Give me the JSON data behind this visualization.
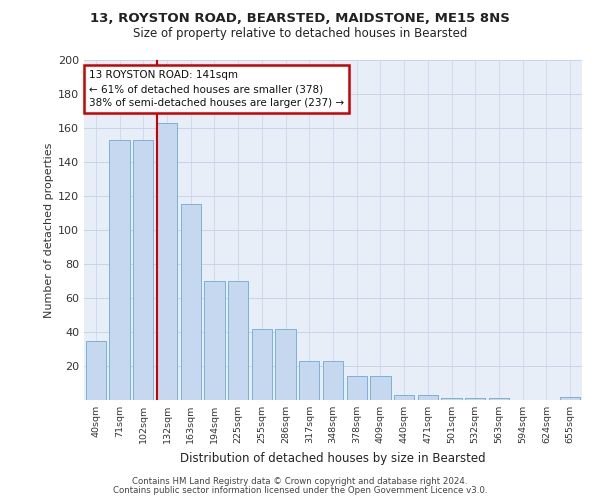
{
  "title": "13, ROYSTON ROAD, BEARSTED, MAIDSTONE, ME15 8NS",
  "subtitle": "Size of property relative to detached houses in Bearsted",
  "xlabel": "Distribution of detached houses by size in Bearsted",
  "ylabel": "Number of detached properties",
  "bar_labels": [
    "40sqm",
    "71sqm",
    "102sqm",
    "132sqm",
    "163sqm",
    "194sqm",
    "225sqm",
    "255sqm",
    "286sqm",
    "317sqm",
    "348sqm",
    "378sqm",
    "409sqm",
    "440sqm",
    "471sqm",
    "501sqm",
    "532sqm",
    "563sqm",
    "594sqm",
    "624sqm",
    "655sqm"
  ],
  "bar_values": [
    35,
    153,
    153,
    163,
    115,
    70,
    70,
    42,
    42,
    23,
    23,
    14,
    14,
    3,
    3,
    1,
    1,
    1,
    0,
    0,
    2
  ],
  "bar_color": "#c5d8f0",
  "bar_edge_color": "#6aaad4",
  "property_line_x": 3.0,
  "annotation_line1": "13 ROYSTON ROAD: 141sqm",
  "annotation_line2": "← 61% of detached houses are smaller (378)",
  "annotation_line3": "38% of semi-detached houses are larger (237) →",
  "annotation_box_color": "#ffffff",
  "annotation_box_edge_color": "#cc0000",
  "vline_color": "#cc0000",
  "grid_color": "#c8d4e8",
  "background_color": "#e8eef8",
  "ylim": [
    0,
    200
  ],
  "yticks": [
    0,
    20,
    40,
    60,
    80,
    100,
    120,
    140,
    160,
    180,
    200
  ],
  "footer_line1": "Contains HM Land Registry data © Crown copyright and database right 2024.",
  "footer_line2": "Contains public sector information licensed under the Open Government Licence v3.0."
}
